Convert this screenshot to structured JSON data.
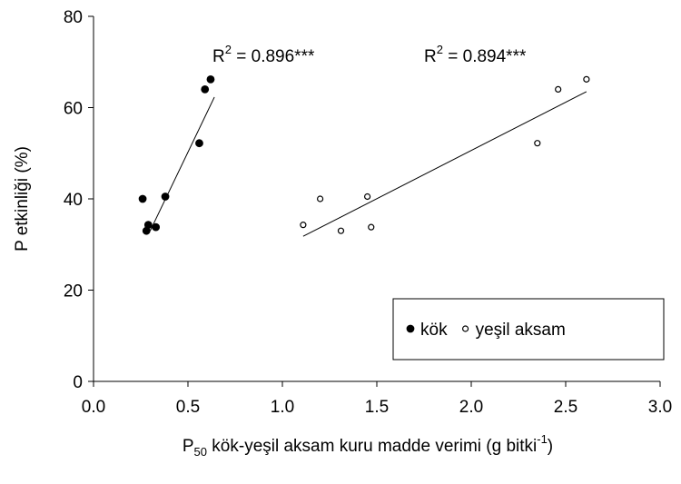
{
  "chart_data": {
    "type": "scatter",
    "y_label": "P etkinliği (%)",
    "x_label": [
      "P",
      "50",
      " kök-yeşil aksam kuru madde verimi (g bitki",
      "-1",
      ")"
    ],
    "xlim": [
      0,
      3
    ],
    "xticks": [
      {
        "value": 0,
        "label": "0.0"
      },
      {
        "value": 0.5,
        "label": "0.5"
      },
      {
        "value": 1,
        "label": "1.0"
      },
      {
        "value": 1.5,
        "label": "1.5"
      },
      {
        "value": 2,
        "label": "2.0"
      },
      {
        "value": 2.5,
        "label": "2.5"
      },
      {
        "value": 3,
        "label": "3.0"
      }
    ],
    "ylim": [
      0,
      80
    ],
    "yticks": [
      0,
      20,
      40,
      60,
      80
    ],
    "legend": "lower right",
    "series": [
      {
        "name": "kök",
        "color": "#000000",
        "marker": "filled",
        "x": [
          0.26,
          0.28,
          0.29,
          0.33,
          0.38,
          0.56,
          0.59,
          0.62
        ],
        "y": [
          40,
          33,
          34.3,
          33.8,
          40.5,
          52.2,
          64,
          66.2
        ],
        "fit": {
          "x": [
            0.3,
            0.64
          ],
          "y": [
            33,
            62.3
          ]
        },
        "annotation": [
          "R",
          "2",
          " = 0.896***"
        ]
      },
      {
        "name": "yeşil aksam",
        "color": "#000000",
        "marker": "open",
        "x": [
          1.11,
          1.2,
          1.31,
          1.45,
          1.47,
          2.35,
          2.46,
          2.61
        ],
        "y": [
          34.3,
          40,
          33,
          40.5,
          33.8,
          52.2,
          64,
          66.2
        ],
        "fit": {
          "x": [
            1.11,
            2.61
          ],
          "y": [
            31.8,
            63.5
          ]
        },
        "annotation": [
          "R",
          "2",
          " = 0.894***"
        ]
      }
    ]
  }
}
